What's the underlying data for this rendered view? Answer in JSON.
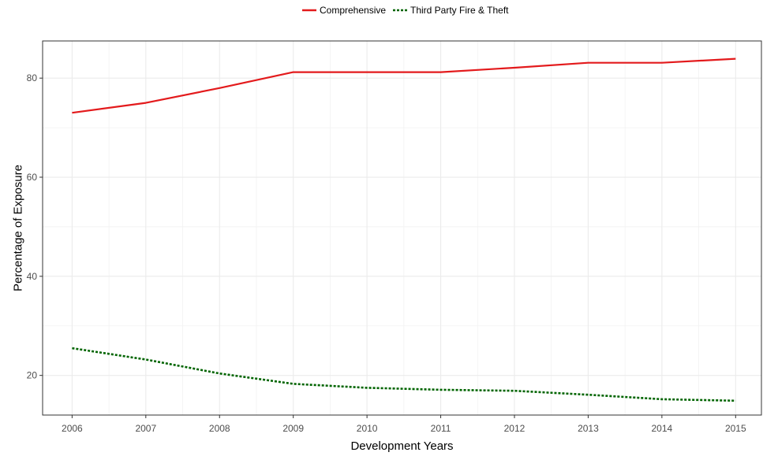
{
  "chart_data": {
    "type": "line",
    "title": "",
    "xlabel": "Development Years",
    "ylabel": "Percentage of Exposure",
    "x": [
      2006,
      2007,
      2008,
      2009,
      2010,
      2011,
      2012,
      2013,
      2014,
      2015
    ],
    "x_tick_labels": [
      "2006",
      "2007",
      "2008",
      "2009",
      "2010",
      "2011",
      "2012",
      "2013",
      "2014",
      "2015"
    ],
    "y_ticks": [
      20,
      40,
      60,
      80
    ],
    "y_tick_labels": [
      "20",
      "40",
      "60",
      "80"
    ],
    "xlim": [
      2005.6,
      2015.35
    ],
    "ylim": [
      12,
      87.5
    ],
    "grid": true,
    "legend_position": "top",
    "series": [
      {
        "name": "Comprehensive",
        "color": "#e31a1c",
        "line_style": "solid",
        "values": [
          73.0,
          75.0,
          78.0,
          81.2,
          81.2,
          81.2,
          82.1,
          83.1,
          83.1,
          83.9
        ]
      },
      {
        "name": "Third Party Fire & Theft",
        "color": "#006400",
        "line_style": "dotted",
        "values": [
          25.5,
          23.2,
          20.4,
          18.3,
          17.5,
          17.1,
          16.9,
          16.1,
          15.2,
          14.9
        ]
      }
    ]
  }
}
